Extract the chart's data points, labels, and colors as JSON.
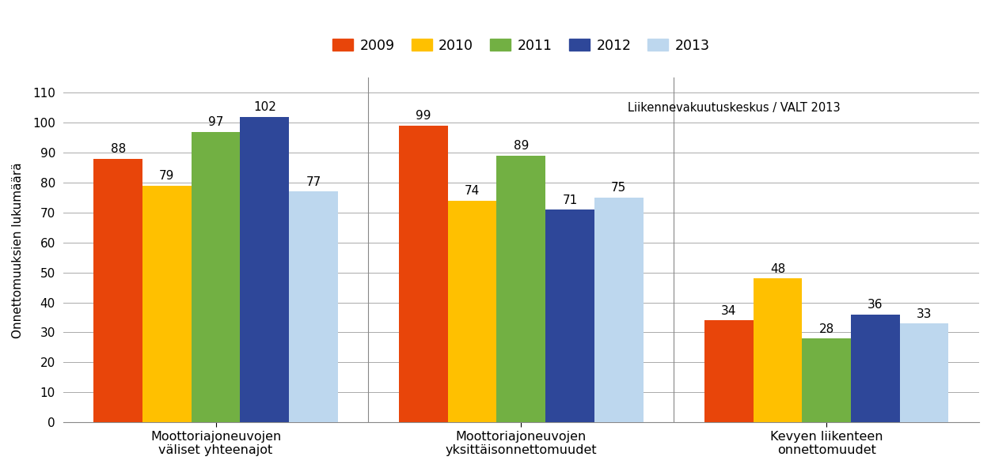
{
  "categories": [
    "Moottoriajoneuvojen\nväliset yhteenajot",
    "Moottoriajoneuvojen\nyksittäisonnettomuudet",
    "Kevyen liikenteen\nonnettomuudet"
  ],
  "series": {
    "2009": [
      88,
      99,
      34
    ],
    "2010": [
      79,
      74,
      48
    ],
    "2011": [
      97,
      89,
      28
    ],
    "2012": [
      102,
      71,
      36
    ],
    "2013": [
      77,
      75,
      33
    ]
  },
  "colors": {
    "2009": "#E8450A",
    "2010": "#FFC000",
    "2011": "#72B043",
    "2012": "#2E4799",
    "2013": "#BDD7EE"
  },
  "ylabel": "Onnettomuuksien lukumäärä",
  "ylim": [
    0,
    115
  ],
  "yticks": [
    0,
    10,
    20,
    30,
    40,
    50,
    60,
    70,
    80,
    90,
    100,
    110
  ],
  "annotation": "Liikennevakuutuskeskus / VALT 2013",
  "legend_years": [
    "2009",
    "2010",
    "2011",
    "2012",
    "2013"
  ],
  "figsize": [
    12.52,
    5.92
  ],
  "dpi": 100
}
